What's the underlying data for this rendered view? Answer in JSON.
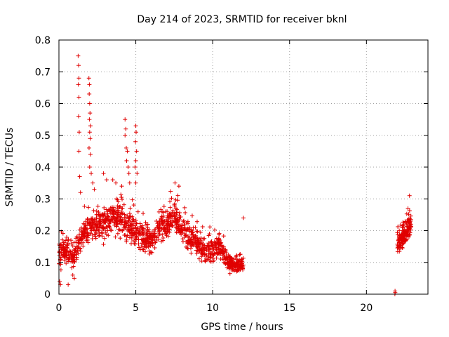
{
  "chart_data": {
    "type": "scatter",
    "title": "Day 214 of 2023, SRMTID for receiver bknl",
    "xlabel": "GPS time / hours",
    "ylabel": "SRMTID / TECUs",
    "xlim": [
      0,
      24
    ],
    "ylim": [
      0,
      0.8
    ],
    "x_ticks": [
      0,
      5,
      10,
      15,
      20
    ],
    "x_tick_labels": [
      "0",
      "5",
      "10",
      "15",
      "20"
    ],
    "y_ticks": [
      0,
      0.1,
      0.2,
      0.3,
      0.4,
      0.5,
      0.6,
      0.7,
      0.8
    ],
    "y_tick_labels": [
      "0",
      "0.1",
      "0.2",
      "0.3",
      "0.4",
      "0.5",
      "0.6",
      "0.7",
      "0.8"
    ],
    "grid": true,
    "marker": "+",
    "marker_color": "#e00000",
    "series": [
      {
        "name": "SRMTID",
        "profile": [
          [
            0.0,
            0.13,
            0.05
          ],
          [
            0.5,
            0.13,
            0.04
          ],
          [
            1.0,
            0.12,
            0.04
          ],
          [
            1.5,
            0.19,
            0.05
          ],
          [
            2.0,
            0.21,
            0.05
          ],
          [
            2.5,
            0.21,
            0.06
          ],
          [
            3.0,
            0.22,
            0.06
          ],
          [
            3.5,
            0.24,
            0.06
          ],
          [
            4.0,
            0.24,
            0.06
          ],
          [
            4.5,
            0.21,
            0.06
          ],
          [
            5.0,
            0.2,
            0.06
          ],
          [
            5.5,
            0.18,
            0.05
          ],
          [
            6.0,
            0.17,
            0.05
          ],
          [
            6.5,
            0.2,
            0.05
          ],
          [
            7.0,
            0.22,
            0.05
          ],
          [
            7.5,
            0.24,
            0.05
          ],
          [
            8.0,
            0.21,
            0.05
          ],
          [
            8.5,
            0.17,
            0.05
          ],
          [
            9.0,
            0.16,
            0.05
          ],
          [
            9.5,
            0.13,
            0.04
          ],
          [
            10.0,
            0.14,
            0.04
          ],
          [
            10.5,
            0.15,
            0.04
          ],
          [
            11.0,
            0.1,
            0.03
          ],
          [
            11.5,
            0.09,
            0.03
          ],
          [
            12.0,
            0.09,
            0.02
          ]
        ],
        "segments": [
          {
            "x_start": 0.0,
            "x_end": 12.0,
            "count": 1300
          },
          {
            "x_start": 22.0,
            "x_end": 22.9,
            "count": 150
          }
        ],
        "late_profile": [
          [
            22.0,
            0.16,
            0.04
          ],
          [
            22.5,
            0.19,
            0.04
          ],
          [
            22.9,
            0.22,
            0.04
          ]
        ],
        "outliers": [
          [
            1.25,
            0.75
          ],
          [
            1.28,
            0.72
          ],
          [
            1.3,
            0.68
          ],
          [
            1.26,
            0.66
          ],
          [
            1.3,
            0.62
          ],
          [
            1.28,
            0.56
          ],
          [
            1.32,
            0.51
          ],
          [
            1.3,
            0.45
          ],
          [
            1.35,
            0.37
          ],
          [
            1.4,
            0.32
          ],
          [
            1.95,
            0.68
          ],
          [
            1.98,
            0.66
          ],
          [
            1.97,
            0.63
          ],
          [
            2.0,
            0.6
          ],
          [
            2.02,
            0.57
          ],
          [
            1.98,
            0.55
          ],
          [
            2.05,
            0.53
          ],
          [
            2.0,
            0.51
          ],
          [
            2.03,
            0.49
          ],
          [
            1.96,
            0.46
          ],
          [
            2.05,
            0.44
          ],
          [
            2.0,
            0.4
          ],
          [
            2.1,
            0.38
          ],
          [
            2.2,
            0.35
          ],
          [
            2.3,
            0.33
          ],
          [
            4.3,
            0.55
          ],
          [
            4.35,
            0.52
          ],
          [
            4.3,
            0.5
          ],
          [
            4.38,
            0.46
          ],
          [
            4.45,
            0.45
          ],
          [
            4.4,
            0.42
          ],
          [
            4.5,
            0.4
          ],
          [
            4.55,
            0.38
          ],
          [
            4.6,
            0.35
          ],
          [
            5.0,
            0.53
          ],
          [
            5.02,
            0.51
          ],
          [
            4.98,
            0.48
          ],
          [
            5.05,
            0.45
          ],
          [
            5.0,
            0.42
          ],
          [
            4.95,
            0.4
          ],
          [
            5.08,
            0.38
          ],
          [
            5.0,
            0.35
          ],
          [
            2.9,
            0.38
          ],
          [
            3.1,
            0.36
          ],
          [
            3.5,
            0.36
          ],
          [
            3.7,
            0.35
          ],
          [
            7.55,
            0.35
          ],
          [
            7.8,
            0.34
          ],
          [
            12.0,
            0.24
          ],
          [
            22.8,
            0.31
          ],
          [
            22.7,
            0.27
          ],
          [
            0.05,
            0.04
          ],
          [
            0.1,
            0.03
          ],
          [
            0.6,
            0.03
          ],
          [
            1.0,
            0.05
          ],
          [
            0.9,
            0.06
          ],
          [
            21.85,
            0.0
          ],
          [
            21.87,
            0.005
          ],
          [
            21.86,
            0.01
          ]
        ],
        "seed": 214
      }
    ]
  }
}
